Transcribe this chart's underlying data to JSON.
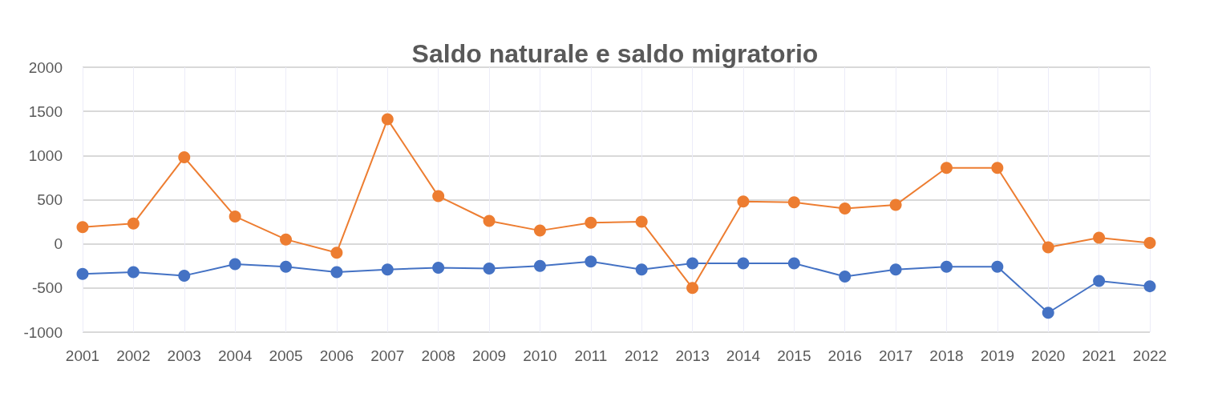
{
  "chart_data": {
    "type": "line",
    "title": "Saldo naturale e saldo migratorio",
    "categories": [
      "2001",
      "2002",
      "2003",
      "2004",
      "2005",
      "2006",
      "2007",
      "2008",
      "2009",
      "2010",
      "2011",
      "2012",
      "2013",
      "2014",
      "2015",
      "2016",
      "2017",
      "2018",
      "2019",
      "2020",
      "2021",
      "2022"
    ],
    "series": [
      {
        "color": "#4472c4",
        "values": [
          -340,
          -320,
          -360,
          -230,
          -260,
          -320,
          -290,
          -270,
          -280,
          -250,
          -200,
          -290,
          -220,
          -220,
          -220,
          -370,
          -290,
          -260,
          -260,
          -780,
          -420,
          -480
        ]
      },
      {
        "color": "#ed7d31",
        "values": [
          190,
          230,
          980,
          310,
          50,
          -100,
          1410,
          540,
          260,
          150,
          240,
          250,
          -500,
          480,
          470,
          400,
          440,
          860,
          860,
          -40,
          70,
          10
        ]
      }
    ],
    "ylim": [
      -1000,
      2000
    ],
    "yticks": [
      -1000,
      -500,
      0,
      500,
      1000,
      1500,
      2000
    ],
    "grid": true,
    "marker": "circle",
    "line_style": "solid"
  }
}
